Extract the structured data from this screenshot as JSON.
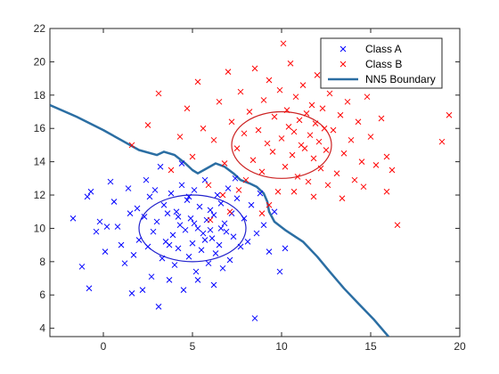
{
  "chart_data": {
    "type": "scatter",
    "title": "",
    "xlabel": "",
    "ylabel": "",
    "xlim": [
      -3,
      20
    ],
    "ylim": [
      3.5,
      22
    ],
    "x_ticks": [
      0,
      5,
      10,
      15,
      20
    ],
    "y_ticks": [
      4,
      6,
      8,
      10,
      12,
      14,
      16,
      18,
      20,
      22
    ],
    "grid": false,
    "box": true,
    "legend_position": "top-right",
    "series": [
      {
        "name": "Class A",
        "marker": "x",
        "color": "#0000ff",
        "points": [
          [
            -1.7,
            10.6
          ],
          [
            -1.2,
            7.7
          ],
          [
            -0.8,
            6.4
          ],
          [
            -0.9,
            11.9
          ],
          [
            -0.7,
            12.2
          ],
          [
            -0.4,
            9.8
          ],
          [
            -0.2,
            10.4
          ],
          [
            0.1,
            8.6
          ],
          [
            0.4,
            12.8
          ],
          [
            0.6,
            11.6
          ],
          [
            0.8,
            10.1
          ],
          [
            1.0,
            9.0
          ],
          [
            1.2,
            7.9
          ],
          [
            1.4,
            12.4
          ],
          [
            1.5,
            10.9
          ],
          [
            1.7,
            8.4
          ],
          [
            1.9,
            11.2
          ],
          [
            2.0,
            9.3
          ],
          [
            2.2,
            6.3
          ],
          [
            2.3,
            10.7
          ],
          [
            2.4,
            12.9
          ],
          [
            2.5,
            8.9
          ],
          [
            2.6,
            11.9
          ],
          [
            2.7,
            7.1
          ],
          [
            2.8,
            9.8
          ],
          [
            3.0,
            10.4
          ],
          [
            3.1,
            5.3
          ],
          [
            3.2,
            13.7
          ],
          [
            3.3,
            8.2
          ],
          [
            3.4,
            11.4
          ],
          [
            3.5,
            9.2
          ],
          [
            3.6,
            10.9
          ],
          [
            3.7,
            6.9
          ],
          [
            3.8,
            12.1
          ],
          [
            3.9,
            9.6
          ],
          [
            4.0,
            7.8
          ],
          [
            4.1,
            11.0
          ],
          [
            4.2,
            8.8
          ],
          [
            4.3,
            10.2
          ],
          [
            4.4,
            12.6
          ],
          [
            4.5,
            6.3
          ],
          [
            4.6,
            9.9
          ],
          [
            4.7,
            11.7
          ],
          [
            4.8,
            8.3
          ],
          [
            4.9,
            10.6
          ],
          [
            5.0,
            9.1
          ],
          [
            5.1,
            12.3
          ],
          [
            5.2,
            7.4
          ],
          [
            5.3,
            10.0
          ],
          [
            5.4,
            11.3
          ],
          [
            5.5,
            8.7
          ],
          [
            5.6,
            9.7
          ],
          [
            5.7,
            12.9
          ],
          [
            5.8,
            10.5
          ],
          [
            5.9,
            7.9
          ],
          [
            6.0,
            11.1
          ],
          [
            6.1,
            9.4
          ],
          [
            6.2,
            10.8
          ],
          [
            6.3,
            8.5
          ],
          [
            6.4,
            12.0
          ],
          [
            6.5,
            9.0
          ],
          [
            6.6,
            11.5
          ],
          [
            6.7,
            7.6
          ],
          [
            6.8,
            10.3
          ],
          [
            6.9,
            9.8
          ],
          [
            7.0,
            12.4
          ],
          [
            7.1,
            8.1
          ],
          [
            7.2,
            10.9
          ],
          [
            7.3,
            9.5
          ],
          [
            7.5,
            11.8
          ],
          [
            7.7,
            8.9
          ],
          [
            7.9,
            10.6
          ],
          [
            8.1,
            9.2
          ],
          [
            8.3,
            11.4
          ],
          [
            8.6,
            9.7
          ],
          [
            8.8,
            12.1
          ],
          [
            9.0,
            10.2
          ],
          [
            9.3,
            8.6
          ],
          [
            9.6,
            11.0
          ],
          [
            9.9,
            7.4
          ],
          [
            10.2,
            8.8
          ],
          [
            8.5,
            4.6
          ],
          [
            0.2,
            10.1
          ],
          [
            1.6,
            6.1
          ],
          [
            2.9,
            12.3
          ],
          [
            4.4,
            13.9
          ],
          [
            6.2,
            6.6
          ],
          [
            7.4,
            13.0
          ],
          [
            5.3,
            6.9
          ],
          [
            3.7,
            9.0
          ],
          [
            4.8,
            11.9
          ],
          [
            6.6,
            10.0
          ],
          [
            5.7,
            9.3
          ],
          [
            4.2,
            10.7
          ],
          [
            5.1,
            10.3
          ],
          [
            6.0,
            9.9
          ]
        ]
      },
      {
        "name": "Class B",
        "marker": "x",
        "color": "#ff0000",
        "points": [
          [
            1.6,
            15.0
          ],
          [
            2.5,
            16.2
          ],
          [
            3.1,
            18.1
          ],
          [
            3.8,
            13.5
          ],
          [
            4.3,
            15.5
          ],
          [
            4.7,
            17.2
          ],
          [
            5.0,
            14.3
          ],
          [
            5.3,
            18.8
          ],
          [
            5.6,
            16.0
          ],
          [
            5.9,
            12.6
          ],
          [
            6.2,
            15.3
          ],
          [
            6.5,
            17.6
          ],
          [
            6.8,
            13.9
          ],
          [
            7.0,
            19.4
          ],
          [
            7.2,
            16.4
          ],
          [
            7.5,
            14.8
          ],
          [
            7.7,
            18.2
          ],
          [
            7.9,
            15.7
          ],
          [
            8.0,
            12.9
          ],
          [
            8.2,
            17.0
          ],
          [
            8.4,
            14.1
          ],
          [
            8.5,
            19.6
          ],
          [
            8.7,
            15.9
          ],
          [
            8.9,
            13.4
          ],
          [
            9.0,
            17.7
          ],
          [
            9.2,
            15.1
          ],
          [
            9.3,
            18.9
          ],
          [
            9.5,
            14.6
          ],
          [
            9.6,
            16.7
          ],
          [
            9.8,
            12.2
          ],
          [
            9.9,
            18.3
          ],
          [
            10.0,
            15.4
          ],
          [
            10.1,
            21.1
          ],
          [
            10.2,
            13.7
          ],
          [
            10.3,
            17.1
          ],
          [
            10.4,
            16.1
          ],
          [
            10.5,
            19.9
          ],
          [
            10.6,
            14.4
          ],
          [
            10.7,
            15.8
          ],
          [
            10.8,
            17.9
          ],
          [
            10.9,
            13.1
          ],
          [
            11.0,
            16.5
          ],
          [
            11.1,
            15.0
          ],
          [
            11.2,
            18.6
          ],
          [
            11.3,
            14.8
          ],
          [
            11.4,
            16.9
          ],
          [
            11.5,
            12.8
          ],
          [
            11.6,
            15.6
          ],
          [
            11.7,
            17.4
          ],
          [
            11.8,
            14.2
          ],
          [
            11.9,
            16.3
          ],
          [
            12.0,
            19.2
          ],
          [
            12.1,
            15.2
          ],
          [
            12.2,
            13.6
          ],
          [
            12.3,
            17.2
          ],
          [
            12.4,
            16.0
          ],
          [
            12.5,
            14.7
          ],
          [
            12.7,
            18.1
          ],
          [
            12.9,
            15.9
          ],
          [
            13.1,
            13.3
          ],
          [
            13.3,
            16.8
          ],
          [
            13.5,
            14.5
          ],
          [
            13.7,
            17.6
          ],
          [
            13.9,
            15.3
          ],
          [
            14.1,
            12.9
          ],
          [
            14.3,
            16.4
          ],
          [
            14.5,
            14.0
          ],
          [
            14.8,
            17.9
          ],
          [
            15.0,
            15.5
          ],
          [
            15.3,
            13.8
          ],
          [
            15.6,
            16.6
          ],
          [
            15.9,
            14.3
          ],
          [
            16.2,
            13.5
          ],
          [
            16.5,
            10.2
          ],
          [
            19.0,
            15.2
          ],
          [
            19.4,
            16.8
          ],
          [
            6.0,
            10.5
          ],
          [
            7.1,
            11.0
          ],
          [
            8.9,
            10.9
          ],
          [
            9.3,
            11.4
          ],
          [
            11.8,
            11.9
          ],
          [
            13.4,
            11.8
          ],
          [
            10.7,
            12.2
          ],
          [
            14.6,
            12.5
          ],
          [
            12.6,
            12.6
          ],
          [
            6.7,
            12.0
          ],
          [
            7.6,
            12.3
          ],
          [
            15.9,
            12.2
          ]
        ]
      },
      {
        "name": "NN5 Boundary",
        "type": "line",
        "color": "#2b6ea3",
        "points": [
          [
            -3.0,
            17.4
          ],
          [
            -1.5,
            16.7
          ],
          [
            0.0,
            15.9
          ],
          [
            1.0,
            15.3
          ],
          [
            2.0,
            14.7
          ],
          [
            3.0,
            14.4
          ],
          [
            3.4,
            14.6
          ],
          [
            4.0,
            14.4
          ],
          [
            4.6,
            13.9
          ],
          [
            5.0,
            13.5
          ],
          [
            5.3,
            13.3
          ],
          [
            5.8,
            13.6
          ],
          [
            6.3,
            13.9
          ],
          [
            6.8,
            13.7
          ],
          [
            7.3,
            13.3
          ],
          [
            7.7,
            12.9
          ],
          [
            8.2,
            12.7
          ],
          [
            8.6,
            12.5
          ],
          [
            9.0,
            12.1
          ],
          [
            9.2,
            11.6
          ],
          [
            9.3,
            11.0
          ],
          [
            9.6,
            10.4
          ],
          [
            10.2,
            9.9
          ],
          [
            11.2,
            9.2
          ],
          [
            12.0,
            8.3
          ],
          [
            12.7,
            7.4
          ],
          [
            13.5,
            6.4
          ],
          [
            14.3,
            5.5
          ],
          [
            15.2,
            4.5
          ],
          [
            16.0,
            3.5
          ]
        ]
      },
      {
        "name": "",
        "type": "ellipse",
        "color": "#2222cc",
        "center": [
          5.0,
          10.0
        ],
        "radii": [
          3.0,
          2.0
        ]
      },
      {
        "name": "",
        "type": "ellipse",
        "color": "#cc2222",
        "center": [
          10.0,
          15.0
        ],
        "radii": [
          2.8,
          2.0
        ]
      }
    ]
  }
}
